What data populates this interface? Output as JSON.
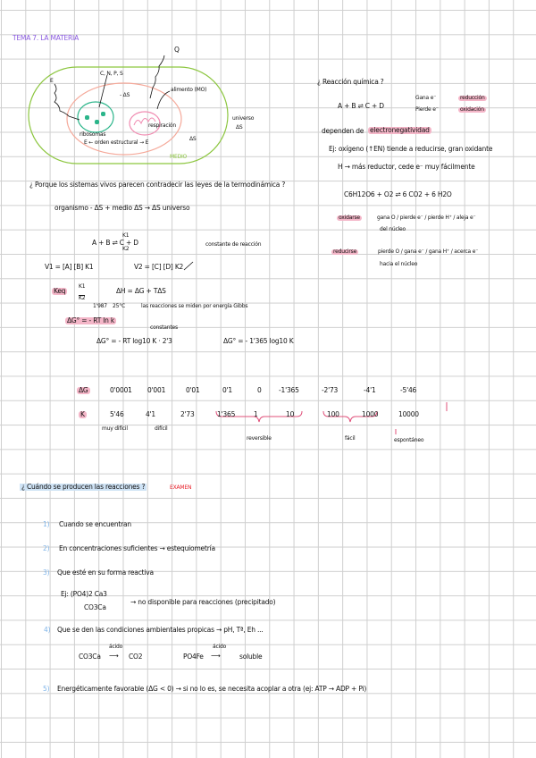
{
  "title": "TEMA 7. LA MATERIA",
  "diagram": {
    "q_label": "Q",
    "e_label": "E",
    "adn_label": "C, N, P, S",
    "minus_ds": "- ΔS",
    "alimento_label": "alimento (MO)",
    "ribosomas_label": "ribosomas",
    "respiracion_label": "respiración",
    "orden_label": "E ← orden estructural → E",
    "ds_label": "ΔS",
    "universo_label": "universo",
    "universo_ds": "ΔS",
    "medio_label": "MEDIO"
  },
  "colors": {
    "outer": "#8cc63f",
    "cell": "#f5a99a",
    "nucleus": "#2bb58a",
    "mito": "#f08ab0",
    "highlight": "#f4b6c8",
    "title": "#8a5ae0",
    "exam": "#e8202a",
    "numbers": "#7fb4e8"
  },
  "left": {
    "question": "¿ Porque los sistemas vivos parecen contradecir las leyes de la termodinámica ?",
    "organism_eq": "organismo - ΔS  +  medio ΔS  →  ΔS universo",
    "reaction": "A + B ⇌ C + D",
    "k1": "K1",
    "k2": "K2",
    "constante": "constante de reacción",
    "v1": "V1 = [A] [B] K1",
    "v2": "V2 = [C] [D] K2",
    "keq": "Keq",
    "keq_frac_top": "K1",
    "keq_frac_bottom": "K2",
    "dh_eq": "ΔH = ΔG + TΔS",
    "note_r": "1'987",
    "note_t": "25°C",
    "gibbs_note": "las reacciones se miden por energía Gibbs",
    "dg0": "ΔG° = - RT ln k",
    "constantes": "constantes",
    "dg0_log": "ΔG° = - RT log10 K · 2'3",
    "dg0_final": "ΔG° = - 1'365 log10 K"
  },
  "right": {
    "question": "¿ Reacción química ?",
    "reaction": "A + B ⇌ C + D",
    "gana": "Gana e⁻",
    "gana_result": "reducción",
    "pierde": "Pierde e⁻",
    "pierde_result": "oxidación",
    "depend": "dependen de",
    "depend_hl": "electronegatividad",
    "ex1": "Ej: oxígeno (↑EN) tiende a reducirse, gran oxidante",
    "ex2": "H → más reductor, cede e⁻ muy fácilmente",
    "glucose": "C6H12O6  +  O2  ⇌  6 CO2  +  6 H2O",
    "oxidarse": "oxidarse",
    "oxidarse_text": "gana O / pierde e⁻ / pierde H⁺ / aleja e⁻",
    "oxidarse_text2": "del núcleo",
    "reducirse": "reducirse",
    "reducirse_text": "pierde O / gana e⁻ / gana H⁺ / acerca e⁻",
    "reducirse_text2": "hacia el núcleo"
  },
  "table": {
    "dg_label": "ΔG",
    "k_label": "K",
    "dg": [
      "0'0001",
      "0'001",
      "0'01",
      "0'1",
      "0",
      "-1'365",
      "-2'73",
      "-4'1",
      "-5'46"
    ],
    "k": [
      "5'46",
      "4'1",
      "2'73",
      "1'365",
      "1",
      "10",
      "100",
      "1000",
      "10000"
    ],
    "muy_dificil": "muy difícil",
    "dificil": "difícil",
    "reversible": "reversible",
    "facil": "fácil",
    "espontaneo": "espontáneo"
  },
  "section2": {
    "question": "¿ Cuándo se producen las reacciones ?",
    "exam": "EXAMEN",
    "items": [
      {
        "num": "1)",
        "text": "Cuando se encuentran"
      },
      {
        "num": "2)",
        "text": "En concentraciones suficientes  →  estequiometría"
      },
      {
        "num": "3)",
        "text": "Que esté en su forma reactiva"
      },
      {
        "num": "4)",
        "text": "Que se den las condiciones ambientales propicas  →  pH, Tª, Eh ..."
      },
      {
        "num": "5)",
        "text": "Energéticamente favorable (ΔG < 0)  →  si no lo es, se necesita acoplar a otra (ej: ATP → ADP + Pi)"
      }
    ],
    "ej3_a": "Ej: (PO4)2 Ca3",
    "ej3_b": "CO3Ca",
    "ej3_result": "→  no disponible para reacciones (precipitado)",
    "ex4_a": "CO3Ca",
    "ex4_acid": "ácido",
    "ex4_b": "CO2",
    "ex4_c": "PO4Fe",
    "ex4_d": "soluble"
  }
}
